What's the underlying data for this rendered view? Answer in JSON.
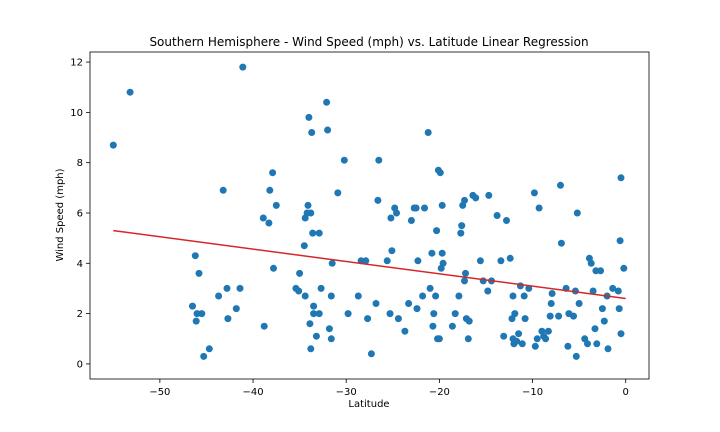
{
  "chart_data": {
    "type": "scatter",
    "title": "Southern Hemisphere - Wind Speed (mph) vs. Latitude Linear Regression",
    "xlabel": "Latitude",
    "ylabel": "Wind Speed (mph)",
    "xlim": [
      -57.5,
      2.5
    ],
    "ylim": [
      -0.6,
      12.4
    ],
    "xticks": [
      -50,
      -40,
      -30,
      -20,
      -10,
      0
    ],
    "yticks": [
      0,
      2,
      4,
      6,
      8,
      10,
      12
    ],
    "grid": false,
    "legend": "none",
    "point_color": "#1f77b4",
    "line_color": "#d62728",
    "regression": {
      "x": [
        -55.0,
        0.0
      ],
      "y": [
        5.3,
        2.6
      ]
    },
    "points": [
      [
        -55.0,
        8.7
      ],
      [
        -53.2,
        10.8
      ],
      [
        -41.1,
        11.8
      ],
      [
        -46.5,
        2.3
      ],
      [
        -46.2,
        4.3
      ],
      [
        -46.1,
        1.7
      ],
      [
        -45.8,
        3.6
      ],
      [
        -45.5,
        2.0
      ],
      [
        -46.0,
        2.0
      ],
      [
        -45.3,
        0.3
      ],
      [
        -44.7,
        0.6
      ],
      [
        -43.7,
        2.7
      ],
      [
        -43.2,
        6.9
      ],
      [
        -42.8,
        3.0
      ],
      [
        -42.7,
        1.8
      ],
      [
        -41.8,
        2.2
      ],
      [
        -41.4,
        3.0
      ],
      [
        -38.9,
        5.8
      ],
      [
        -38.8,
        1.5
      ],
      [
        -38.3,
        5.6
      ],
      [
        -38.2,
        6.9
      ],
      [
        -37.9,
        7.6
      ],
      [
        -37.8,
        3.8
      ],
      [
        -37.5,
        6.3
      ],
      [
        -35.4,
        3.0
      ],
      [
        -35.0,
        3.6
      ],
      [
        -35.1,
        2.9
      ],
      [
        -34.5,
        4.7
      ],
      [
        -34.4,
        5.8
      ],
      [
        -34.2,
        6.0
      ],
      [
        -34.1,
        6.3
      ],
      [
        -34.0,
        9.8
      ],
      [
        -33.7,
        9.2
      ],
      [
        -33.8,
        6.0
      ],
      [
        -33.6,
        5.2
      ],
      [
        -34.4,
        2.7
      ],
      [
        -33.9,
        1.6
      ],
      [
        -33.8,
        0.6
      ],
      [
        -33.5,
        2.0
      ],
      [
        -33.5,
        2.3
      ],
      [
        -33.2,
        1.1
      ],
      [
        -32.9,
        5.2
      ],
      [
        -32.7,
        3.0
      ],
      [
        -32.9,
        2.0
      ],
      [
        -32.1,
        10.4
      ],
      [
        -32.0,
        9.3
      ],
      [
        -31.8,
        1.4
      ],
      [
        -31.5,
        4.0
      ],
      [
        -31.6,
        2.7
      ],
      [
        -31.6,
        1.0
      ],
      [
        -30.9,
        6.8
      ],
      [
        -30.2,
        8.1
      ],
      [
        -29.8,
        2.0
      ],
      [
        -28.7,
        2.7
      ],
      [
        -28.4,
        4.1
      ],
      [
        -27.9,
        4.1
      ],
      [
        -27.7,
        1.8
      ],
      [
        -27.3,
        0.4
      ],
      [
        -26.8,
        2.4
      ],
      [
        -26.6,
        6.5
      ],
      [
        -26.5,
        8.1
      ],
      [
        -25.6,
        4.1
      ],
      [
        -25.3,
        2.0
      ],
      [
        -25.2,
        5.8
      ],
      [
        -25.1,
        4.5
      ],
      [
        -24.8,
        6.2
      ],
      [
        -24.6,
        6.0
      ],
      [
        -24.4,
        1.8
      ],
      [
        -23.7,
        1.3
      ],
      [
        -23.3,
        2.4
      ],
      [
        -23.0,
        5.7
      ],
      [
        -22.7,
        6.2
      ],
      [
        -22.5,
        6.2
      ],
      [
        -22.4,
        2.2
      ],
      [
        -22.3,
        4.1
      ],
      [
        -21.8,
        2.7
      ],
      [
        -21.6,
        6.2
      ],
      [
        -21.2,
        9.2
      ],
      [
        -21.0,
        3.0
      ],
      [
        -20.8,
        4.4
      ],
      [
        -20.7,
        1.5
      ],
      [
        -20.6,
        2.0
      ],
      [
        -20.4,
        2.7
      ],
      [
        -20.3,
        5.3
      ],
      [
        -20.2,
        1.0
      ],
      [
        -20.0,
        1.0
      ],
      [
        -20.1,
        7.7
      ],
      [
        -19.9,
        7.6
      ],
      [
        -19.7,
        6.3
      ],
      [
        -19.6,
        4.0
      ],
      [
        -19.8,
        3.8
      ],
      [
        -19.7,
        4.4
      ],
      [
        -18.6,
        1.5
      ],
      [
        -18.3,
        2.0
      ],
      [
        -17.9,
        2.7
      ],
      [
        -17.7,
        5.2
      ],
      [
        -17.6,
        5.5
      ],
      [
        -17.5,
        6.3
      ],
      [
        -17.3,
        6.5
      ],
      [
        -17.3,
        3.3
      ],
      [
        -17.2,
        3.6
      ],
      [
        -17.1,
        1.8
      ],
      [
        -16.9,
        1.0
      ],
      [
        -16.8,
        1.7
      ],
      [
        -16.4,
        6.7
      ],
      [
        -16.1,
        6.6
      ],
      [
        -15.6,
        4.1
      ],
      [
        -15.3,
        3.3
      ],
      [
        -14.8,
        2.9
      ],
      [
        -14.7,
        6.7
      ],
      [
        -14.4,
        3.3
      ],
      [
        -13.8,
        5.9
      ],
      [
        -13.4,
        4.1
      ],
      [
        -13.1,
        1.1
      ],
      [
        -12.8,
        5.7
      ],
      [
        -12.4,
        4.2
      ],
      [
        -12.2,
        1.8
      ],
      [
        -12.1,
        2.7
      ],
      [
        -12.0,
        0.8
      ],
      [
        -12.1,
        1.0
      ],
      [
        -11.9,
        2.0
      ],
      [
        -11.7,
        0.9
      ],
      [
        -11.5,
        1.2
      ],
      [
        -11.3,
        3.1
      ],
      [
        -11.1,
        0.8
      ],
      [
        -10.9,
        2.7
      ],
      [
        -10.8,
        1.8
      ],
      [
        -10.4,
        3.0
      ],
      [
        -9.8,
        6.8
      ],
      [
        -9.7,
        0.7
      ],
      [
        -9.5,
        1.0
      ],
      [
        -9.3,
        6.2
      ],
      [
        -9.0,
        1.3
      ],
      [
        -8.8,
        1.1
      ],
      [
        -8.6,
        1.0
      ],
      [
        -8.3,
        1.3
      ],
      [
        -8.1,
        1.9
      ],
      [
        -8.0,
        2.4
      ],
      [
        -7.9,
        2.8
      ],
      [
        -7.2,
        1.9
      ],
      [
        -7.0,
        7.1
      ],
      [
        -6.9,
        4.8
      ],
      [
        -6.4,
        3.0
      ],
      [
        -6.2,
        0.7
      ],
      [
        -6.1,
        2.0
      ],
      [
        -5.6,
        1.9
      ],
      [
        -5.4,
        2.9
      ],
      [
        -5.2,
        6.0
      ],
      [
        -5.3,
        0.3
      ],
      [
        -5.0,
        2.4
      ],
      [
        -4.4,
        1.0
      ],
      [
        -4.1,
        0.8
      ],
      [
        -3.9,
        4.2
      ],
      [
        -3.7,
        4.0
      ],
      [
        -3.5,
        2.9
      ],
      [
        -3.3,
        1.4
      ],
      [
        -3.2,
        3.7
      ],
      [
        -3.1,
        0.8
      ],
      [
        -2.7,
        3.7
      ],
      [
        -2.5,
        2.2
      ],
      [
        -2.3,
        1.7
      ],
      [
        -2.0,
        2.7
      ],
      [
        -1.9,
        0.6
      ],
      [
        -1.4,
        3.0
      ],
      [
        -0.8,
        2.9
      ],
      [
        -0.7,
        2.2
      ],
      [
        -0.6,
        4.9
      ],
      [
        -0.5,
        7.4
      ],
      [
        -0.5,
        1.2
      ],
      [
        -0.2,
        3.8
      ]
    ]
  }
}
